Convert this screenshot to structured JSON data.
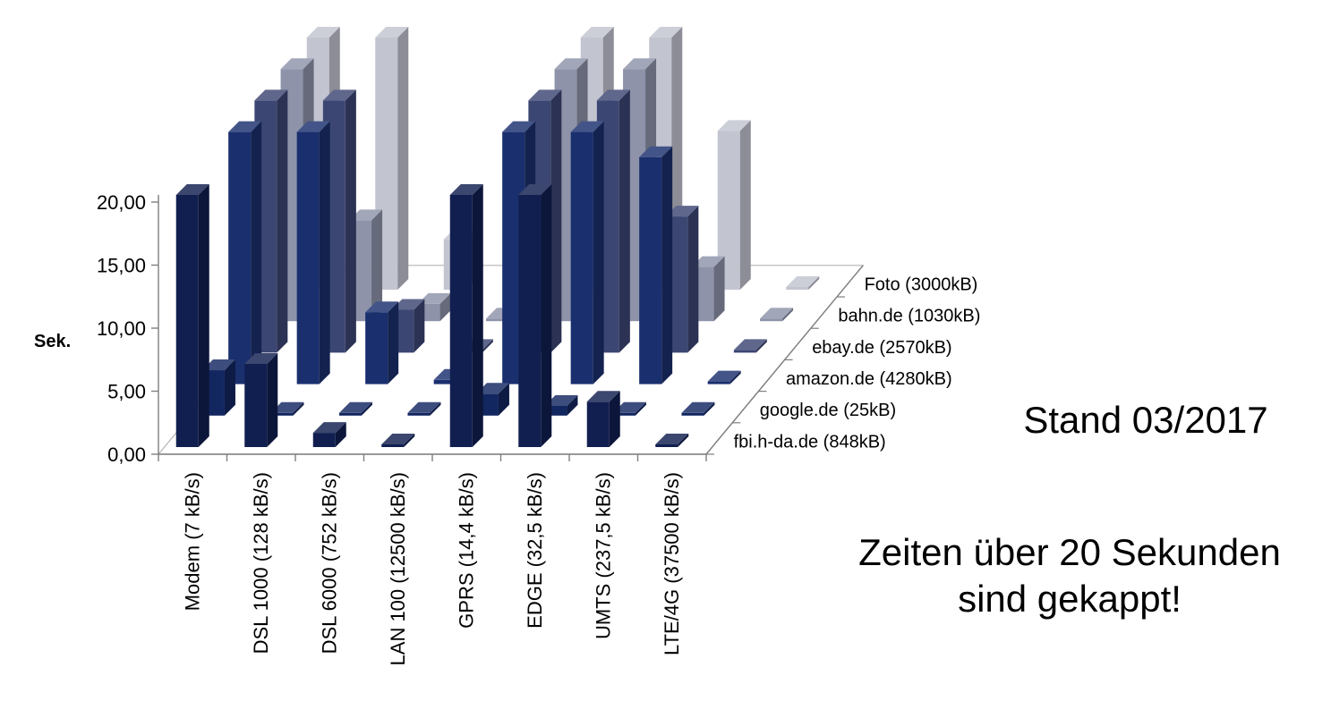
{
  "notes": {
    "stand": "Stand 03/2017",
    "capped_line1": "Zeiten über 20 Sekunden",
    "capped_line2": "sind gekappt!"
  },
  "chart_data": {
    "type": "bar",
    "variant": "3d-column",
    "title": "",
    "xlabel": "",
    "ylabel": "Sek.",
    "ylim": [
      0,
      20
    ],
    "yticks": [
      "0,00",
      "5,00",
      "10,00",
      "15,00",
      "20,00"
    ],
    "grid": false,
    "legend": "none",
    "categories": [
      "Modem (7 kB/s)",
      "DSL 1000  (128 kB/s)",
      "DSL 6000  (752 kB/s)",
      "LAN 100 (12500 kB/s)",
      "GPRS (14,4 kB/s)",
      "EDGE (32,5 kB/s)",
      "UMTS (237,5 kB/s)",
      "LTE/4G (37500 kB/s)"
    ],
    "series": [
      {
        "name": "fbi.h-da.de (848kB)",
        "color": "#111f50",
        "values": [
          20,
          6.6,
          1.13,
          0.07,
          20,
          20,
          3.6,
          0.02
        ]
      },
      {
        "name": "google.de (25kB)",
        "color": "#122660",
        "values": [
          3.6,
          0.2,
          0.03,
          0.002,
          1.74,
          0.77,
          0.11,
          0.001
        ]
      },
      {
        "name": "amazon.de (4280kB)",
        "color": "#1a2f6e",
        "values": [
          20,
          20,
          5.7,
          0.34,
          20,
          20,
          18,
          0.11
        ]
      },
      {
        "name": "ebay.de (2570kB)",
        "color": "#3c4673",
        "values": [
          20,
          20,
          3.4,
          0.21,
          20,
          20,
          10.8,
          0.07
        ]
      },
      {
        "name": "bahn.de (1030kB)",
        "color": "#8e93aa",
        "values": [
          20,
          8.0,
          1.37,
          0.08,
          20,
          20,
          4.3,
          0.03
        ]
      },
      {
        "name": "Foto (3000kB)",
        "color": "#c2c4d0",
        "values": [
          20,
          20,
          4.0,
          0.24,
          20,
          20,
          12.6,
          0.08
        ]
      }
    ]
  }
}
